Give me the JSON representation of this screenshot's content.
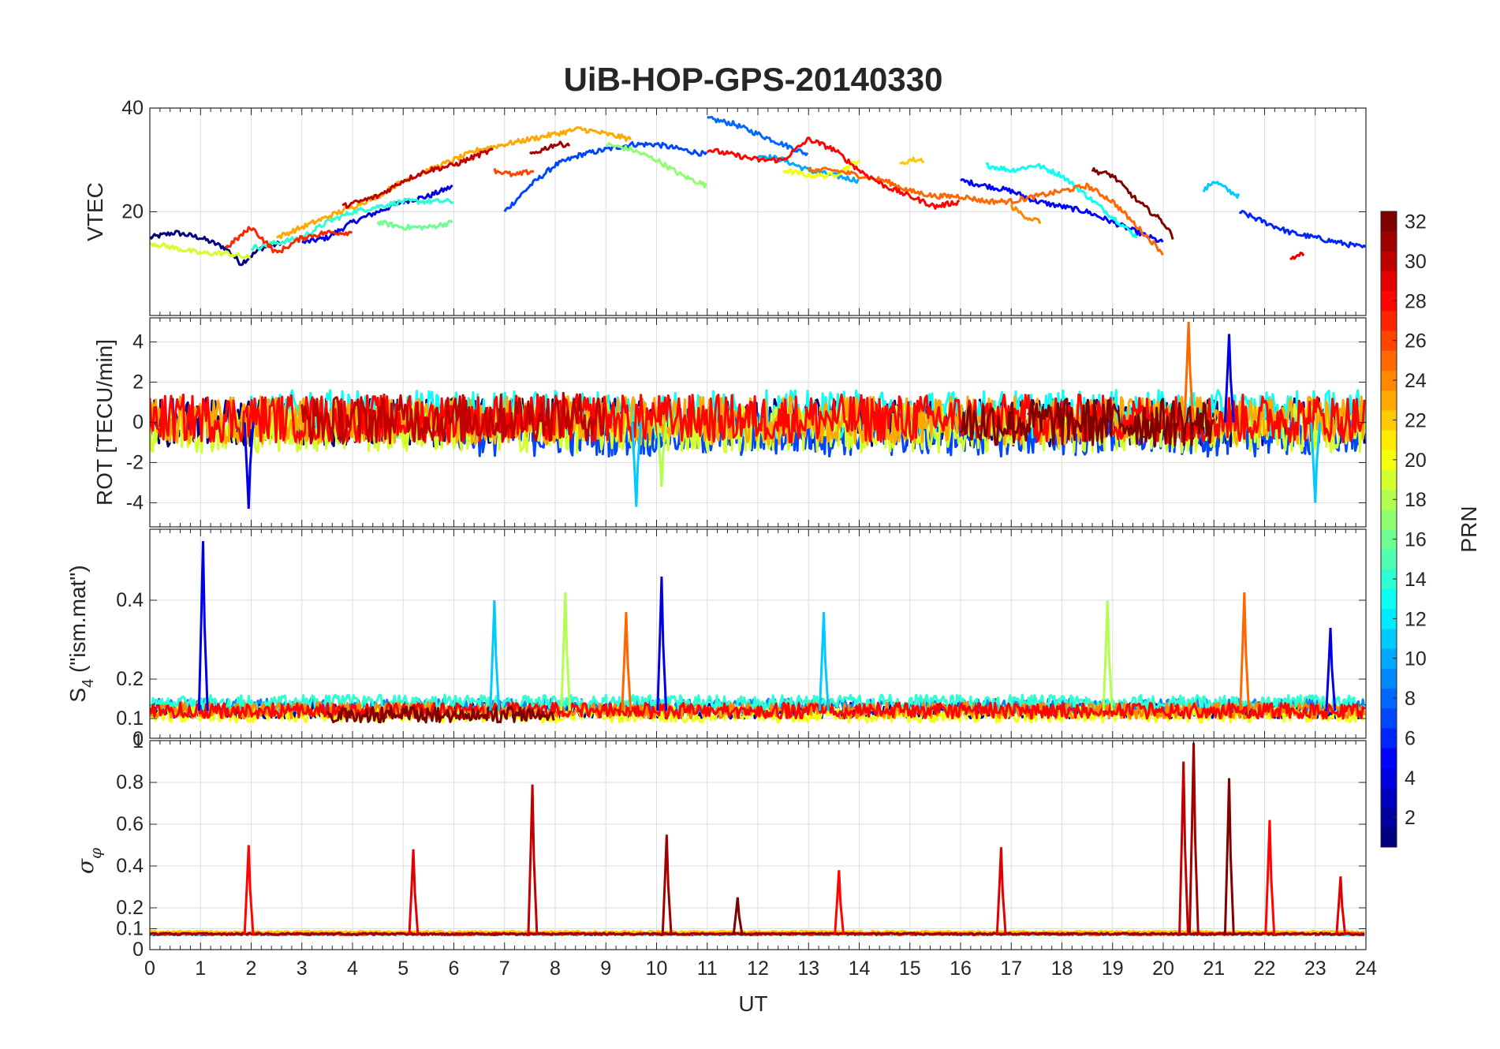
{
  "chart_data": {
    "type": "line",
    "title": "UiB-HOP-GPS-20140330",
    "xlabel": "UT",
    "xlim": [
      0,
      24
    ],
    "x_ticks": [
      "0",
      "1",
      "2",
      "3",
      "4",
      "5",
      "6",
      "7",
      "8",
      "9",
      "10",
      "11",
      "12",
      "13",
      "14",
      "15",
      "16",
      "17",
      "18",
      "19",
      "20",
      "21",
      "22",
      "23",
      "24"
    ],
    "grid": true,
    "colorbar": {
      "label": "PRN",
      "colormap": "jet",
      "range": [
        1,
        32
      ],
      "ticks": [
        "2",
        "4",
        "6",
        "8",
        "10",
        "12",
        "14",
        "16",
        "18",
        "20",
        "22",
        "24",
        "26",
        "28",
        "30",
        "32"
      ]
    },
    "panels": [
      {
        "id": "vtec",
        "ylabel": "VTEC",
        "ylim": [
          0,
          40
        ],
        "y_ticks": [
          "20",
          "40"
        ],
        "y_tick_values": [
          20,
          40
        ],
        "bottom_label": "",
        "noise": 0.5,
        "series": [
          {
            "prn": 1,
            "x": [
              0,
              0.5,
              1,
              1.5,
              1.8,
              2.2,
              2.6
            ],
            "y": [
              15,
              16,
              15,
              13,
              10,
              13,
              14
            ]
          },
          {
            "prn": 4,
            "x": [
              3,
              3.5,
              4,
              4.5,
              5,
              5.5,
              6
            ],
            "y": [
              14,
              15,
              18,
              20,
              22,
              23,
              25
            ]
          },
          {
            "prn": 7,
            "x": [
              7,
              7.5,
              8,
              8.5,
              9,
              9.5,
              10,
              10.5,
              11
            ],
            "y": [
              20,
              25,
              29,
              31,
              32,
              33,
              33,
              32,
              31
            ]
          },
          {
            "prn": 8,
            "x": [
              11,
              11.5,
              12,
              12.5,
              13
            ],
            "y": [
              38,
              37,
              35,
              33,
              31
            ]
          },
          {
            "prn": 10,
            "x": [
              12,
              12.5,
              13,
              13.5,
              14
            ],
            "y": [
              31,
              30,
              28,
              27,
              26
            ]
          },
          {
            "prn": 11,
            "x": [
              20.8,
              21,
              21.3,
              21.5
            ],
            "y": [
              24,
              26,
              24,
              23
            ]
          },
          {
            "prn": 5,
            "x": [
              16,
              16.5,
              17,
              17.5,
              18,
              18.5,
              19,
              19.5,
              20
            ],
            "y": [
              26,
              25,
              24,
              22,
              21,
              20,
              18,
              16,
              14
            ]
          },
          {
            "prn": 6,
            "x": [
              21.5,
              22,
              22.5,
              23,
              23.5,
              24
            ],
            "y": [
              20,
              18,
              16,
              15,
              14,
              13
            ]
          },
          {
            "prn": 13,
            "x": [
              16.5,
              17,
              17.5,
              18,
              18.5,
              19,
              19.5
            ],
            "y": [
              29,
              28,
              29,
              27,
              23,
              19,
              15
            ]
          },
          {
            "prn": 14,
            "x": [
              2,
              2.5,
              3,
              3.5,
              4,
              4.5,
              5,
              5.5,
              6
            ],
            "y": [
              13,
              14,
              15,
              18,
              20,
              21,
              22,
              22,
              22
            ]
          },
          {
            "prn": 16,
            "x": [
              4.5,
              5,
              5.5,
              6
            ],
            "y": [
              18,
              17,
              17,
              18
            ]
          },
          {
            "prn": 17,
            "x": [
              9,
              9.5,
              10,
              10.5,
              11
            ],
            "y": [
              33,
              32,
              30,
              27,
              25
            ]
          },
          {
            "prn": 19,
            "x": [
              0,
              0.5,
              1,
              1.5,
              2
            ],
            "y": [
              14,
              13,
              12,
              12,
              11
            ]
          },
          {
            "prn": 20,
            "x": [
              12.5,
              13,
              13.5,
              14
            ],
            "y": [
              28,
              27,
              27,
              30
            ]
          },
          {
            "prn": 22,
            "x": [
              14.8,
              15,
              15.3
            ],
            "y": [
              29,
              30,
              30
            ]
          },
          {
            "prn": 23,
            "x": [
              2.5,
              3,
              3.5,
              4,
              4.5,
              5,
              5.5,
              6,
              6.5,
              7,
              7.5,
              8,
              8.5,
              9,
              9.5
            ],
            "y": [
              15,
              17,
              19,
              21,
              23,
              26,
              28,
              30,
              32,
              33,
              34,
              35,
              36,
              35,
              34
            ]
          },
          {
            "prn": 24,
            "x": [
              17,
              17.3,
              17.6
            ],
            "y": [
              21,
              19,
              18
            ]
          },
          {
            "prn": 25,
            "x": [
              13,
              13.5,
              14,
              14.5,
              15,
              15.5,
              16,
              16.5,
              17,
              17.5,
              18,
              18.5,
              19,
              19.5,
              20
            ],
            "y": [
              28,
              28,
              27,
              26,
              24,
              23,
              23,
              22,
              22,
              23,
              24,
              25,
              22,
              17,
              12
            ]
          },
          {
            "prn": 26,
            "x": [
              6.8,
              7.2,
              7.6
            ],
            "y": [
              28,
              27,
              28
            ]
          },
          {
            "prn": 27,
            "x": [
              1.5,
              2,
              2.5,
              3,
              3.5,
              4
            ],
            "y": [
              13,
              17,
              12,
              15,
              16,
              16
            ]
          },
          {
            "prn": 28,
            "x": [
              11,
              11.5,
              12,
              12.5,
              13,
              13.5,
              14,
              14.5,
              15,
              15.5,
              16
            ],
            "y": [
              32,
              31,
              30,
              30,
              34,
              32,
              28,
              25,
              23,
              21,
              22
            ]
          },
          {
            "prn": 29,
            "x": [
              22.5,
              22.8
            ],
            "y": [
              11,
              12
            ]
          },
          {
            "prn": 30,
            "x": [
              3.8,
              4.5,
              5,
              5.5,
              6,
              6.5,
              6.8
            ],
            "y": [
              21,
              23,
              26,
              28,
              29,
              31,
              32
            ]
          },
          {
            "prn": 31,
            "x": [
              7.5,
              8,
              8.3
            ],
            "y": [
              31,
              33,
              33
            ]
          },
          {
            "prn": 32,
            "x": [
              18.6,
              19,
              19.5,
              20,
              20.2
            ],
            "y": [
              28,
              27,
              22,
              18,
              15
            ]
          }
        ]
      },
      {
        "id": "rot",
        "ylabel": "ROT [TECU/min]",
        "ylim": [
          -5.2,
          5.2
        ],
        "y_ticks": [
          "-4",
          "-2",
          "0",
          "2",
          "4"
        ],
        "y_tick_values": [
          -4,
          -2,
          0,
          2,
          4
        ],
        "bottom_label": "",
        "noise": 1.2,
        "spikes": [
          {
            "x": 1.95,
            "y": -4.3
          },
          {
            "x": 9.6,
            "y": -4.2
          },
          {
            "x": 10.1,
            "y": -3.2
          },
          {
            "x": 20.5,
            "y": 5.0
          },
          {
            "x": 21.3,
            "y": 4.4
          },
          {
            "x": 23.0,
            "y": -4.0
          }
        ],
        "series": [
          {
            "prn": 1,
            "x": [
              0,
              24
            ],
            "y": [
              0,
              0
            ]
          },
          {
            "prn": 7,
            "x": [
              6,
              24
            ],
            "y": [
              -0.5,
              -0.5
            ]
          },
          {
            "prn": 13,
            "x": [
              2,
              24
            ],
            "y": [
              0.4,
              0.4
            ]
          },
          {
            "prn": 19,
            "x": [
              0,
              24
            ],
            "y": [
              -0.3,
              -0.3
            ]
          },
          {
            "prn": 23,
            "x": [
              0,
              24
            ],
            "y": [
              0.1,
              0.1
            ]
          },
          {
            "prn": 28,
            "x": [
              0,
              24
            ],
            "y": [
              0.2,
              0.2
            ]
          },
          {
            "prn": 30,
            "x": [
              3,
              9
            ],
            "y": [
              0.1,
              0.3
            ]
          },
          {
            "prn": 32,
            "x": [
              16,
              21
            ],
            "y": [
              0,
              0
            ]
          }
        ]
      },
      {
        "id": "s4",
        "ylabel": "S4 (\"ism.mat\")",
        "ylim": [
          0.05,
          0.58
        ],
        "y_ticks": [
          "0.1",
          "0.2",
          "0.4"
        ],
        "y_tick_values": [
          0.1,
          0.2,
          0.4
        ],
        "bottom_label": "0",
        "noise": 0.08,
        "spikes": [
          {
            "x": 1.05,
            "y": 0.55
          },
          {
            "x": 6.8,
            "y": 0.4
          },
          {
            "x": 8.2,
            "y": 0.42
          },
          {
            "x": 9.4,
            "y": 0.37
          },
          {
            "x": 10.1,
            "y": 0.46
          },
          {
            "x": 13.3,
            "y": 0.37
          },
          {
            "x": 18.9,
            "y": 0.4
          },
          {
            "x": 21.6,
            "y": 0.42
          },
          {
            "x": 23.3,
            "y": 0.33
          }
        ],
        "series": [
          {
            "prn": 2,
            "x": [
              0,
              24
            ],
            "y": [
              0.1,
              0.1
            ]
          },
          {
            "prn": 9,
            "x": [
              0,
              24
            ],
            "y": [
              0.11,
              0.11
            ]
          },
          {
            "prn": 14,
            "x": [
              0,
              24
            ],
            "y": [
              0.12,
              0.12
            ]
          },
          {
            "prn": 20,
            "x": [
              0,
              24
            ],
            "y": [
              0.09,
              0.09
            ]
          },
          {
            "prn": 24,
            "x": [
              0,
              24
            ],
            "y": [
              0.1,
              0.1
            ]
          },
          {
            "prn": 28,
            "x": [
              0,
              24
            ],
            "y": [
              0.1,
              0.1
            ]
          },
          {
            "prn": 32,
            "x": [
              3.5,
              8
            ],
            "y": [
              0.09,
              0.09
            ]
          }
        ]
      },
      {
        "id": "sigma",
        "ylabel": "σφ",
        "ylim": [
          0,
          1
        ],
        "y_ticks": [
          "0",
          "0.1",
          "0.2",
          "0.4",
          "0.6",
          "0.8"
        ],
        "y_tick_values": [
          0,
          0.1,
          0.2,
          0.4,
          0.6,
          0.8
        ],
        "top_label": "1",
        "bottom_label": "",
        "noise": 0.02,
        "spikes": [
          {
            "x": 1.95,
            "y": 0.5
          },
          {
            "x": 5.2,
            "y": 0.48
          },
          {
            "x": 7.55,
            "y": 0.79
          },
          {
            "x": 10.2,
            "y": 0.55
          },
          {
            "x": 11.6,
            "y": 0.25
          },
          {
            "x": 13.6,
            "y": 0.38
          },
          {
            "x": 16.8,
            "y": 0.49
          },
          {
            "x": 20.4,
            "y": 0.9
          },
          {
            "x": 20.6,
            "y": 0.99
          },
          {
            "x": 21.3,
            "y": 0.82
          },
          {
            "x": 22.1,
            "y": 0.62
          },
          {
            "x": 23.5,
            "y": 0.35
          }
        ],
        "series": [
          {
            "prn": 3,
            "x": [
              0,
              24
            ],
            "y": [
              0.07,
              0.07
            ]
          },
          {
            "prn": 12,
            "x": [
              0,
              24
            ],
            "y": [
              0.07,
              0.07
            ]
          },
          {
            "prn": 17,
            "x": [
              0,
              24
            ],
            "y": [
              0.07,
              0.07
            ]
          },
          {
            "prn": 22,
            "x": [
              0,
              24
            ],
            "y": [
              0.08,
              0.08
            ]
          },
          {
            "prn": 27,
            "x": [
              0,
              24
            ],
            "y": [
              0.07,
              0.07
            ]
          },
          {
            "prn": 31,
            "x": [
              0,
              24
            ],
            "y": [
              0.07,
              0.07
            ]
          }
        ]
      }
    ]
  }
}
